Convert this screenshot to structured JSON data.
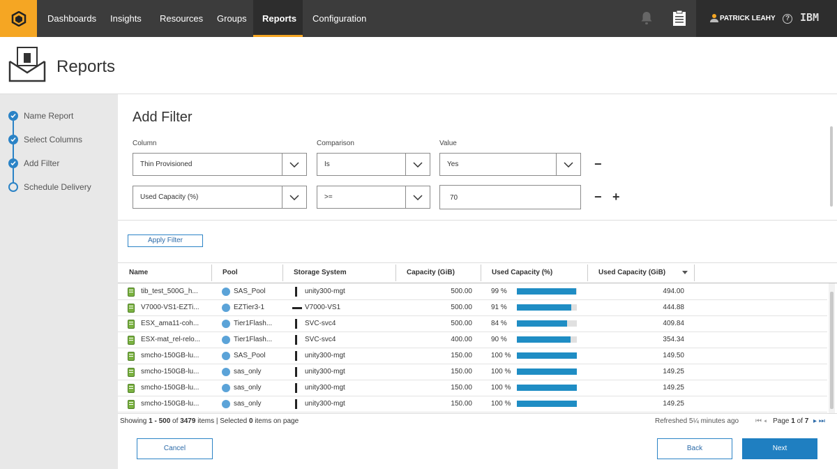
{
  "nav": {
    "items": [
      "Dashboards",
      "Insights",
      "Resources",
      "Groups",
      "Reports",
      "Configuration"
    ],
    "active": "Reports",
    "user": "PATRICK LEAHY",
    "help": "?",
    "brand": "IBM"
  },
  "header": {
    "title": "Reports"
  },
  "steps": [
    {
      "label": "Name Report",
      "status": "done"
    },
    {
      "label": "Select Columns",
      "status": "done"
    },
    {
      "label": "Add Filter",
      "status": "done"
    },
    {
      "label": "Schedule Delivery",
      "status": "todo"
    }
  ],
  "filter": {
    "title": "Add Filter",
    "labels": {
      "column": "Column",
      "comparison": "Comparison",
      "value": "Value"
    },
    "rows": [
      {
        "column": "Thin Provisioned",
        "comparison": "Is",
        "value": "Yes"
      },
      {
        "column": "Used Capacity (%)",
        "comparison": ">=",
        "value": "70"
      }
    ],
    "apply": "Apply Filter"
  },
  "table": {
    "columns": [
      "Name",
      "Pool",
      "Storage System",
      "Capacity (GiB)",
      "Used Capacity (%)",
      "Used Capacity (GiB)"
    ],
    "rows": [
      {
        "name": "tib_test_500G_h...",
        "pool": "SAS_Pool",
        "system": "unity300-mgt",
        "capacity": "500.00",
        "used_pct": "99 %",
        "used_frac": 0.99,
        "used_gib": "494.00"
      },
      {
        "name": "V7000-VS1-EZTi...",
        "pool": "EZTier3-1",
        "system": "V7000-VS1",
        "capacity": "500.00",
        "used_pct": "91 %",
        "used_frac": 0.91,
        "used_gib": "444.88"
      },
      {
        "name": "ESX_ama11-coh...",
        "pool": "Tier1Flash...",
        "system": "SVC-svc4",
        "capacity": "500.00",
        "used_pct": "84 %",
        "used_frac": 0.84,
        "used_gib": "409.84"
      },
      {
        "name": "ESX-mat_rel-relo...",
        "pool": "Tier1Flash...",
        "system": "SVC-svc4",
        "capacity": "400.00",
        "used_pct": "90 %",
        "used_frac": 0.9,
        "used_gib": "354.34"
      },
      {
        "name": "smcho-150GB-lu...",
        "pool": "SAS_Pool",
        "system": "unity300-mgt",
        "capacity": "150.00",
        "used_pct": "100 %",
        "used_frac": 1.0,
        "used_gib": "149.50"
      },
      {
        "name": "smcho-150GB-lu...",
        "pool": "sas_only",
        "system": "unity300-mgt",
        "capacity": "150.00",
        "used_pct": "100 %",
        "used_frac": 1.0,
        "used_gib": "149.25"
      },
      {
        "name": "smcho-150GB-lu...",
        "pool": "sas_only",
        "system": "unity300-mgt",
        "capacity": "150.00",
        "used_pct": "100 %",
        "used_frac": 1.0,
        "used_gib": "149.25"
      },
      {
        "name": "smcho-150GB-lu...",
        "pool": "sas_only",
        "system": "unity300-mgt",
        "capacity": "150.00",
        "used_pct": "100 %",
        "used_frac": 1.0,
        "used_gib": "149.25"
      }
    ],
    "footer": {
      "showing_prefix": "Showing ",
      "range": "1 - 500",
      "of": " of ",
      "total": "3479",
      "items_selected": " items | Selected ",
      "selected": "0",
      "on_page": " items on page",
      "refreshed": "Refreshed 5¼ minutes ago",
      "page_label": "Page ",
      "page": "1",
      "of_pages": " of ",
      "pages": "7"
    }
  },
  "buttons": {
    "cancel": "Cancel",
    "back": "Back",
    "next": "Next"
  },
  "colors": {
    "accent": "#f5a623",
    "nav_bg": "#3c3c3c",
    "primary": "#1f7fc1",
    "bar": "#1f8dc4"
  }
}
